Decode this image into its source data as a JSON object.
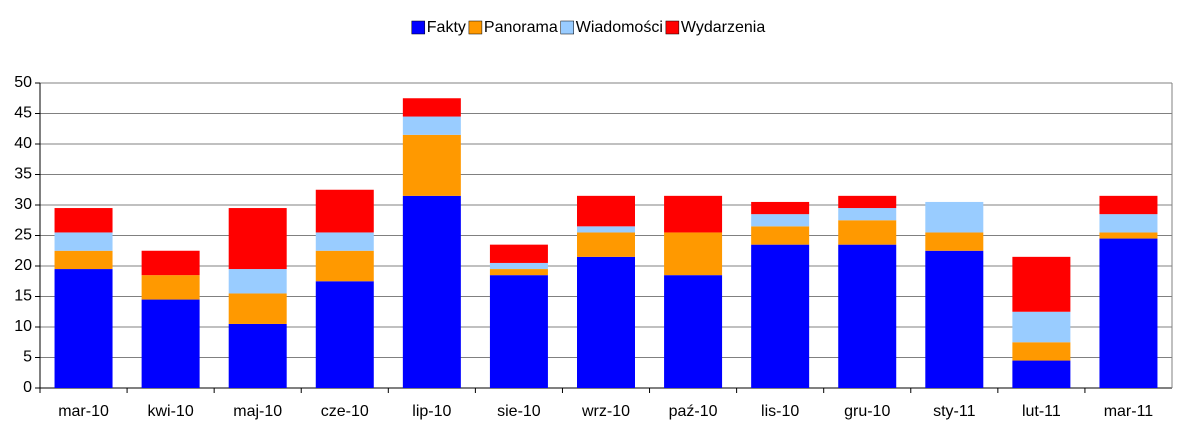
{
  "chart_data": {
    "type": "stacked_bar",
    "categories": [
      "mar-10",
      "kwi-10",
      "maj-10",
      "cze-10",
      "lip-10",
      "sie-10",
      "wrz-10",
      "paź-10",
      "lis-10",
      "gru-10",
      "sty-11",
      "lut-11",
      "mar-11"
    ],
    "series": [
      {
        "name": "Fakty",
        "color": "#0000ff",
        "values": [
          19.5,
          14.5,
          10.5,
          17.5,
          31.5,
          18.5,
          21.5,
          18.5,
          23.5,
          23.5,
          22.5,
          4.5,
          24.5
        ]
      },
      {
        "name": "Panorama",
        "color": "#ff9900",
        "values": [
          3,
          4,
          5,
          5,
          10,
          1,
          4,
          7,
          3,
          4,
          3,
          3,
          1
        ]
      },
      {
        "name": "Wiadomości",
        "color": "#99ccff",
        "values": [
          3,
          0,
          4,
          3,
          3,
          1,
          1,
          0,
          2,
          2,
          5,
          5,
          3
        ]
      },
      {
        "name": "Wydarzenia",
        "color": "#ff0000",
        "values": [
          4,
          4,
          10,
          7,
          3,
          3,
          5,
          6,
          2,
          2,
          0,
          9,
          3
        ]
      }
    ],
    "ylim": [
      0,
      50
    ],
    "yticks": [
      0,
      5,
      10,
      15,
      20,
      25,
      30,
      35,
      40,
      45,
      50
    ],
    "grid": true,
    "legend": "top"
  }
}
